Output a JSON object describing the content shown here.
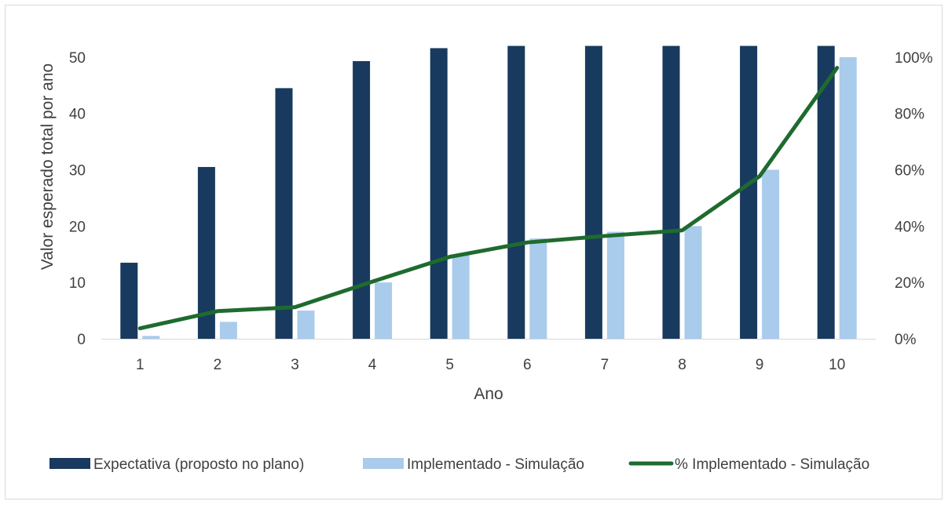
{
  "chart_data": {
    "type": "bar",
    "categories": [
      "1",
      "2",
      "3",
      "4",
      "5",
      "6",
      "7",
      "8",
      "9",
      "10"
    ],
    "xlabel": "Ano",
    "ylabel": "Valor esperado total por ano",
    "ylim": [
      0,
      55
    ],
    "yticks": [
      "0",
      "10",
      "20",
      "30",
      "40",
      "50"
    ],
    "y2lim": [
      0,
      1.1
    ],
    "y2ticks": [
      "0%",
      "20%",
      "40%",
      "60%",
      "80%",
      "100%"
    ],
    "grid": false,
    "legend_position": "bottom",
    "series": [
      {
        "name": "Expectativa (proposto no plano)",
        "kind": "bar",
        "axis": "left",
        "color": "#183a5e",
        "values": [
          13.5,
          30.5,
          44.5,
          49.3,
          51.6,
          52,
          52,
          52,
          52,
          52
        ]
      },
      {
        "name": "Implementado - Simulação",
        "kind": "bar",
        "axis": "left",
        "color": "#a9cbec",
        "values": [
          0.5,
          3,
          5,
          10,
          15,
          17.8,
          19,
          20,
          30,
          50
        ]
      },
      {
        "name": "% Implementado - Simulação",
        "kind": "line",
        "axis": "right",
        "color": "#1e6b2e",
        "values": [
          0.037,
          0.098,
          0.112,
          0.203,
          0.291,
          0.342,
          0.365,
          0.385,
          0.577,
          0.962
        ]
      }
    ]
  }
}
